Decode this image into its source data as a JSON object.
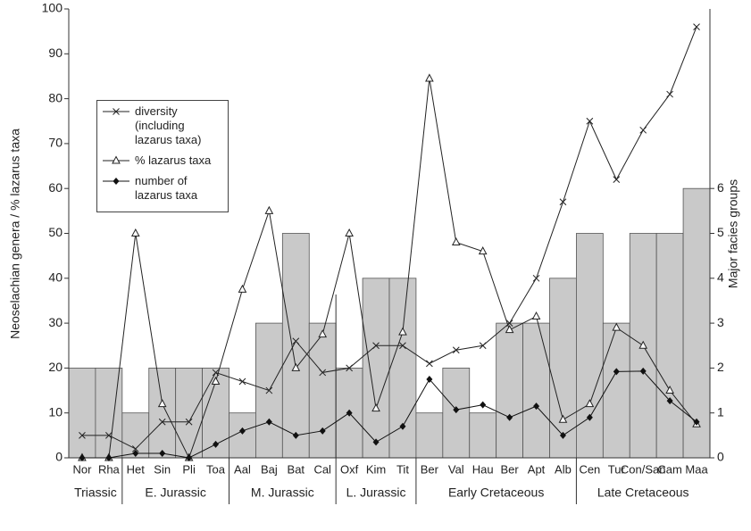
{
  "chart_data": {
    "type": "combo",
    "y_label": "Neoselachian genera / % lazarus taxa",
    "y2_label": "Major facies groups",
    "groups": [
      {
        "name": "Triassic",
        "categories": [
          "Nor",
          "Rha"
        ]
      },
      {
        "name": "E. Jurassic",
        "categories": [
          "Het",
          "Sin",
          "Pli",
          "Toa"
        ]
      },
      {
        "name": "M. Jurassic",
        "categories": [
          "Aal",
          "Baj",
          "Bat",
          "Cal"
        ]
      },
      {
        "name": "L. Jurassic",
        "categories": [
          "Oxf",
          "Kim",
          "Tit"
        ]
      },
      {
        "name": "Early Cretaceous",
        "categories": [
          "Ber",
          "Val",
          "Hau",
          "Ber",
          "Apt",
          "Alb"
        ]
      },
      {
        "name": "Late Cretaceous",
        "categories": [
          "Cen",
          "Tur",
          "Con/San",
          "Cam",
          "Maa"
        ]
      }
    ],
    "series": [
      {
        "type": "bar",
        "axis": "y2",
        "color": "#c9c9c9",
        "values": [
          2,
          2,
          1,
          2,
          2,
          2,
          1,
          3,
          5,
          3,
          2,
          4,
          4,
          1,
          2,
          1,
          3,
          3,
          4,
          5,
          3,
          5,
          5,
          6
        ]
      },
      {
        "type": "line",
        "name": "diversity (including lazarus taxa)",
        "marker": "cross",
        "color": "#222",
        "values": [
          5,
          5,
          2,
          8,
          8,
          19,
          17,
          15,
          26,
          19,
          20,
          25,
          25,
          21,
          24,
          25,
          30,
          40,
          57,
          75,
          62,
          73,
          81,
          96
        ]
      },
      {
        "type": "line",
        "name": "% lazarus taxa",
        "marker": "triangle",
        "color": "#222",
        "values": [
          0,
          0,
          50,
          12,
          0,
          17,
          37.5,
          55,
          20,
          27.5,
          50,
          11,
          28,
          84.5,
          48,
          46,
          28.5,
          31.5,
          8.5,
          12,
          29,
          25,
          15,
          7.5
        ]
      },
      {
        "type": "line",
        "name": "number of lazarus taxa",
        "marker": "diamond",
        "axis": "y2",
        "color": "#111",
        "values": [
          0,
          0,
          0.1,
          0.1,
          0,
          0.3,
          0.6,
          0.8,
          0.5,
          0.6,
          1.0,
          0.35,
          0.7,
          1.75,
          1.07,
          1.18,
          0.9,
          1.15,
          0.5,
          0.9,
          1.92,
          1.93,
          1.27,
          0.8
        ]
      }
    ],
    "ylim": [
      0,
      100
    ],
    "yticks": [
      0,
      10,
      20,
      30,
      40,
      50,
      60,
      70,
      80,
      90,
      100
    ],
    "y2lim": [
      0,
      10
    ],
    "y2ticks": [
      0,
      1,
      2,
      3,
      4,
      5,
      6
    ]
  }
}
